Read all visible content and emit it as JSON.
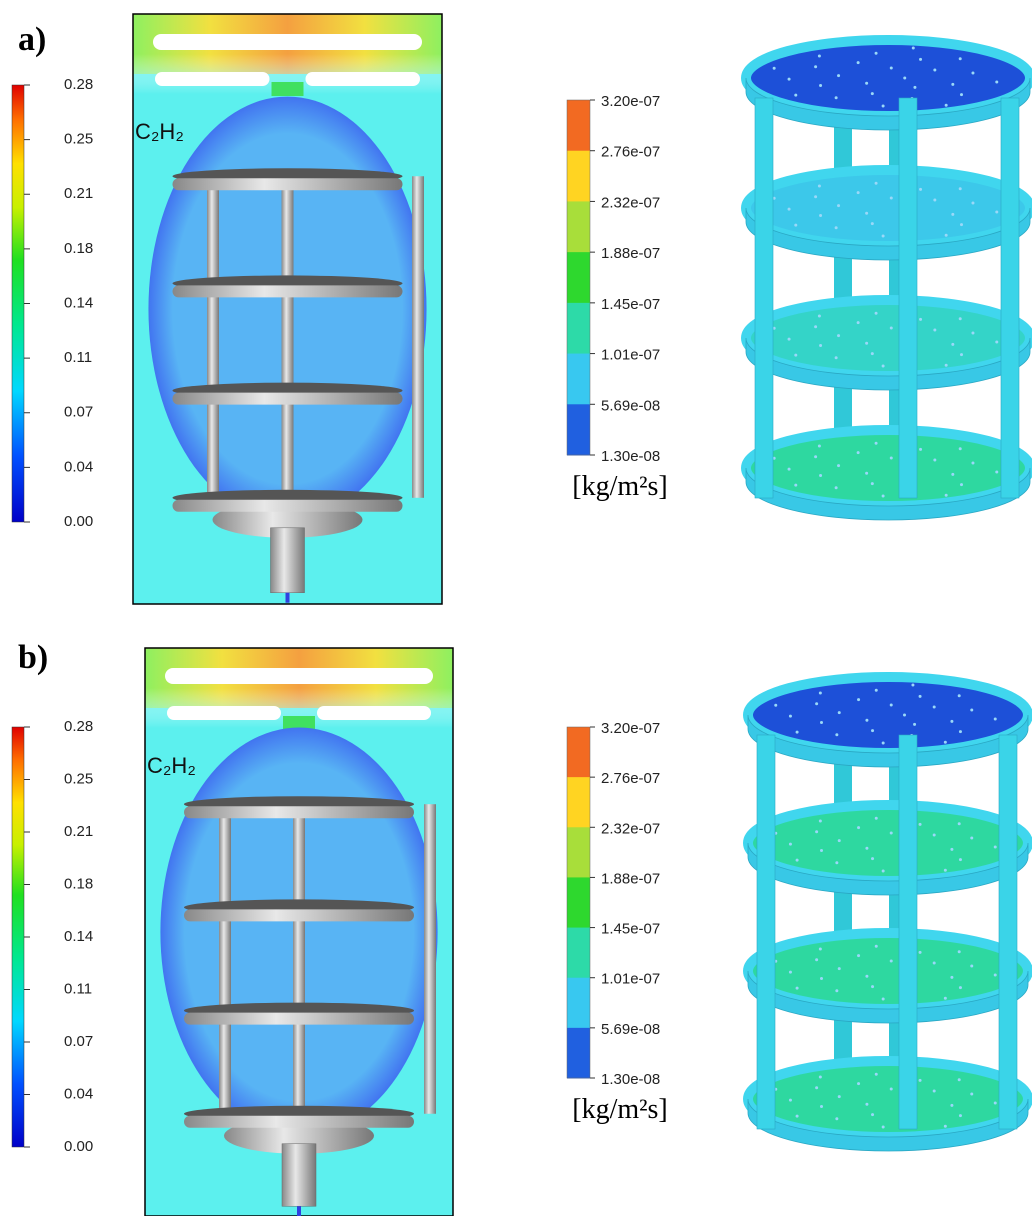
{
  "panels": [
    {
      "label": "a)",
      "species": "C₂H₂",
      "fraction_ticks": [
        "0.28",
        "0.25",
        "0.21",
        "0.18",
        "0.14",
        "0.11",
        "0.07",
        "0.04",
        "0.00"
      ],
      "flux_ticks": [
        "3.20e-07",
        "2.76e-07",
        "2.32e-07",
        "1.88e-07",
        "1.45e-07",
        "1.01e-07",
        "5.69e-08",
        "1.30e-08"
      ],
      "unit": "[kg/m²s]"
    },
    {
      "label": "b)",
      "species": "C₂H₂",
      "fraction_ticks": [
        "0.28",
        "0.25",
        "0.21",
        "0.18",
        "0.14",
        "0.11",
        "0.07",
        "0.04",
        "0.00"
      ],
      "flux_ticks": [
        "3.20e-07",
        "2.76e-07",
        "2.32e-07",
        "1.88e-07",
        "1.45e-07",
        "1.01e-07",
        "5.69e-08",
        "1.30e-08"
      ],
      "unit": "[kg/m²s]"
    }
  ]
}
